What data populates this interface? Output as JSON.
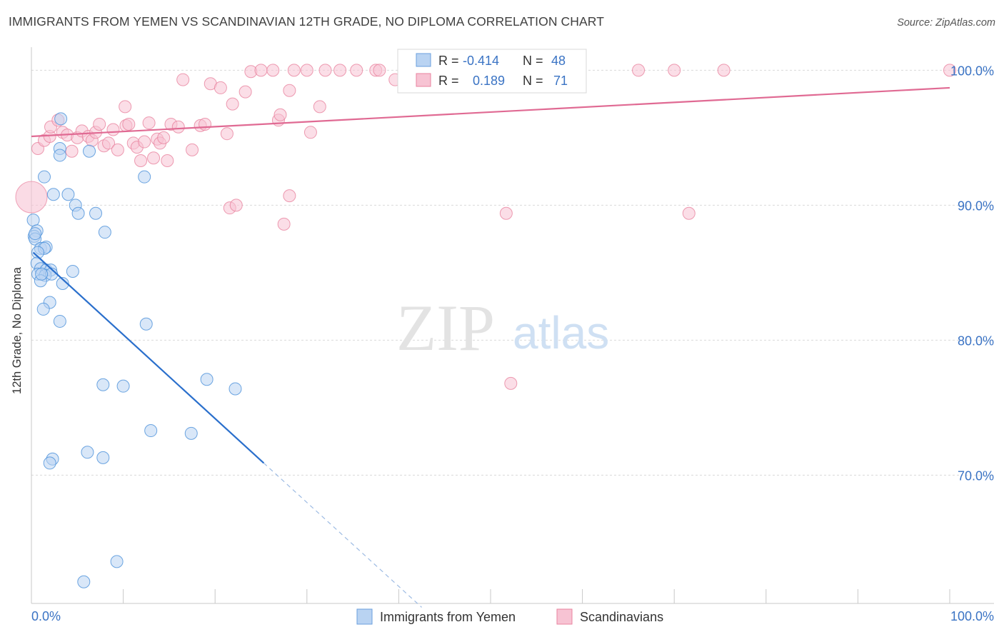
{
  "header": {
    "title": "IMMIGRANTS FROM YEMEN VS SCANDINAVIAN 12TH GRADE, NO DIPLOMA CORRELATION CHART",
    "source": "Source: ZipAtlas.com"
  },
  "watermark": {
    "zip": "ZIP",
    "atlas": "atlas"
  },
  "colors": {
    "blue": "#4a90d9",
    "blue_fill": "#b9d3f2",
    "blue_line": "#2a6fcc",
    "pink": "#e9839f",
    "pink_fill": "#f7c3d3",
    "pink_line": "#e06a93",
    "grid": "#d9d9d9",
    "axis_text": "#3a73c4"
  },
  "legend_box": {
    "rows": [
      {
        "r_label": "R =",
        "r_value": "-0.414",
        "n_label": "N =",
        "n_value": "48"
      },
      {
        "r_label": "R =",
        "r_value": "0.189",
        "n_label": "N =",
        "n_value": "71"
      }
    ]
  },
  "bottom_legend": [
    "Immigrants from Yemen",
    "Scandinavians"
  ],
  "chart_data": {
    "type": "scatter",
    "title": "IMMIGRANTS FROM YEMEN VS SCANDINAVIAN 12TH GRADE, NO DIPLOMA CORRELATION CHART",
    "xlabel": "",
    "ylabel": "12th Grade, No Diploma",
    "xlim": [
      0,
      100
    ],
    "ylim": [
      60.5,
      101.5
    ],
    "x_tick_labels": [
      "0.0%",
      "100.0%"
    ],
    "y_tick_labels": [
      "100.0%",
      "90.0%",
      "80.0%",
      "70.0%"
    ],
    "y_ticks": [
      100,
      90,
      80,
      70
    ],
    "grid": true,
    "legend": "bottom",
    "series": [
      {
        "name": "Immigrants from Yemen",
        "r": -0.414,
        "n": 48,
        "trend": {
          "x0": 0.2,
          "y0": 86.5,
          "x1": 25.3,
          "y1": 70.9,
          "dash_to_x": 42.5
        },
        "points": [
          [
            3.2,
            96.4
          ],
          [
            6.3,
            94.0
          ],
          [
            3.1,
            94.2
          ],
          [
            3.1,
            93.7
          ],
          [
            1.4,
            92.1
          ],
          [
            12.3,
            92.1
          ],
          [
            2.4,
            90.8
          ],
          [
            4.0,
            90.8
          ],
          [
            4.8,
            90.0
          ],
          [
            7.0,
            89.4
          ],
          [
            5.1,
            89.4
          ],
          [
            0.2,
            88.9
          ],
          [
            0.6,
            88.1
          ],
          [
            0.3,
            87.7
          ],
          [
            8.0,
            88.0
          ],
          [
            0.4,
            87.5
          ],
          [
            1.0,
            86.8
          ],
          [
            1.6,
            86.9
          ],
          [
            1.4,
            86.8
          ],
          [
            0.7,
            86.5
          ],
          [
            0.6,
            85.7
          ],
          [
            1.0,
            85.3
          ],
          [
            1.6,
            85.2
          ],
          [
            2.1,
            85.2
          ],
          [
            4.5,
            85.1
          ],
          [
            0.7,
            84.9
          ],
          [
            1.5,
            84.8
          ],
          [
            2.2,
            84.9
          ],
          [
            1.0,
            84.4
          ],
          [
            3.4,
            84.2
          ],
          [
            2.0,
            82.8
          ],
          [
            1.3,
            82.3
          ],
          [
            3.1,
            81.4
          ],
          [
            12.5,
            81.2
          ],
          [
            7.8,
            76.7
          ],
          [
            10.0,
            76.6
          ],
          [
            19.1,
            77.1
          ],
          [
            22.2,
            76.4
          ],
          [
            13.0,
            73.3
          ],
          [
            17.4,
            73.1
          ],
          [
            6.1,
            71.7
          ],
          [
            7.8,
            71.3
          ],
          [
            2.3,
            71.2
          ],
          [
            2.0,
            70.9
          ],
          [
            9.3,
            63.6
          ],
          [
            5.7,
            62.1
          ],
          [
            0.4,
            87.9
          ],
          [
            1.1,
            84.9
          ]
        ]
      },
      {
        "name": "Scandinavians",
        "r": 0.189,
        "n": 71,
        "trend": {
          "x0": 0.0,
          "y0": 95.1,
          "x1": 100.0,
          "y1": 98.7
        },
        "points": [
          [
            0.7,
            94.2
          ],
          [
            1.4,
            94.8
          ],
          [
            2.0,
            95.1
          ],
          [
            2.1,
            95.8
          ],
          [
            2.9,
            96.3
          ],
          [
            3.4,
            95.4
          ],
          [
            3.9,
            95.2
          ],
          [
            4.4,
            94.0
          ],
          [
            5.0,
            95.0
          ],
          [
            5.5,
            95.5
          ],
          [
            6.2,
            95.1
          ],
          [
            6.6,
            94.8
          ],
          [
            7.0,
            95.4
          ],
          [
            7.4,
            96.0
          ],
          [
            7.9,
            94.4
          ],
          [
            8.4,
            94.6
          ],
          [
            8.9,
            95.6
          ],
          [
            9.4,
            94.1
          ],
          [
            10.2,
            97.3
          ],
          [
            10.3,
            95.9
          ],
          [
            10.6,
            96.0
          ],
          [
            11.1,
            94.6
          ],
          [
            11.5,
            94.3
          ],
          [
            11.9,
            93.3
          ],
          [
            12.3,
            94.7
          ],
          [
            12.8,
            96.1
          ],
          [
            13.3,
            93.5
          ],
          [
            13.7,
            94.9
          ],
          [
            14.0,
            94.6
          ],
          [
            14.4,
            95.0
          ],
          [
            14.8,
            93.3
          ],
          [
            15.2,
            96.0
          ],
          [
            16.0,
            95.8
          ],
          [
            16.5,
            99.3
          ],
          [
            17.5,
            94.1
          ],
          [
            18.4,
            95.9
          ],
          [
            18.9,
            96.0
          ],
          [
            19.5,
            99.0
          ],
          [
            20.6,
            98.7
          ],
          [
            21.3,
            95.3
          ],
          [
            21.6,
            89.8
          ],
          [
            21.9,
            97.5
          ],
          [
            22.3,
            90.0
          ],
          [
            23.3,
            98.4
          ],
          [
            23.9,
            99.9
          ],
          [
            25.0,
            100.0
          ],
          [
            26.3,
            100.0
          ],
          [
            26.9,
            96.3
          ],
          [
            27.1,
            96.7
          ],
          [
            27.5,
            88.6
          ],
          [
            28.1,
            90.7
          ],
          [
            28.1,
            98.5
          ],
          [
            28.6,
            100.0
          ],
          [
            30.0,
            100.0
          ],
          [
            30.4,
            95.4
          ],
          [
            31.4,
            97.3
          ],
          [
            32.0,
            100.0
          ],
          [
            33.6,
            100.0
          ],
          [
            35.4,
            100.0
          ],
          [
            37.5,
            100.0
          ],
          [
            37.9,
            100.0
          ],
          [
            39.6,
            99.3
          ],
          [
            41.8,
            100.0
          ],
          [
            47.6,
            100.0
          ],
          [
            51.7,
            89.4
          ],
          [
            52.2,
            76.8
          ],
          [
            66.1,
            100.0
          ],
          [
            70.0,
            100.0
          ],
          [
            71.6,
            89.4
          ],
          [
            75.4,
            100.0
          ],
          [
            100.0,
            100.0
          ]
        ],
        "big_point": [
          0.0,
          90.6
        ]
      }
    ]
  }
}
